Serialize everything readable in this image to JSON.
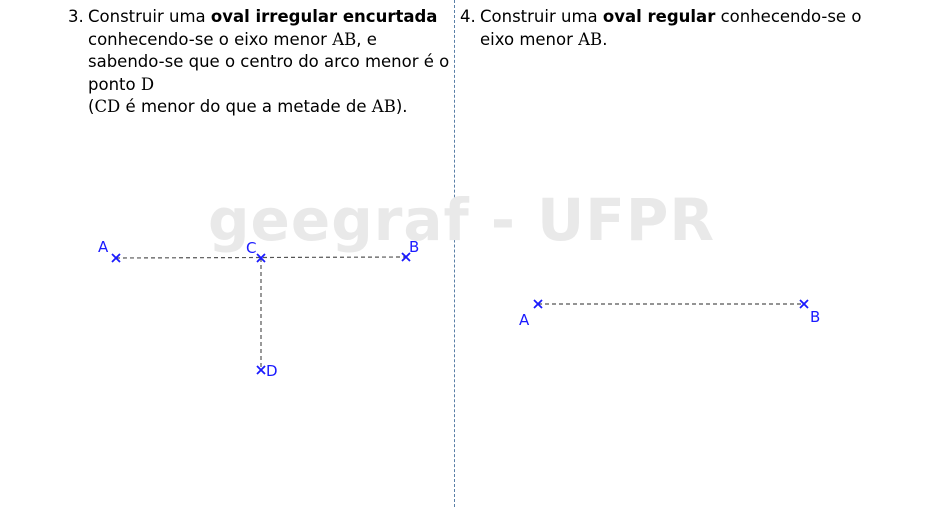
{
  "watermark": {
    "text": "geegraf - UFPR"
  },
  "problem3": {
    "number": "3.",
    "t1": "Construir uma ",
    "b1": "oval irregular encurtada",
    "t2": "conhecendo-se o eixo menor ",
    "m1": "AB",
    "t3": ", e sabendo-se que o centro do arco menor é o ponto ",
    "m2": "D",
    "t4": "(",
    "m3": "CD",
    "t5": " é menor do que a metade de ",
    "m4": "AB",
    "t6": ")."
  },
  "problem4": {
    "number": "4.",
    "t1": "Construir uma ",
    "b1": "oval regular",
    "t2": " conhecendo-se o eixo menor ",
    "m1": "AB",
    "t3": "."
  },
  "figure3": {
    "points": {
      "A": "A",
      "B": "B",
      "C": "C",
      "D": "D"
    }
  },
  "figure4": {
    "points": {
      "A": "A",
      "B": "B"
    }
  },
  "colors": {
    "point": "#1a1aff",
    "line": "#555555",
    "divider": "#5a7fa6",
    "watermark": "#e9e9e9"
  }
}
